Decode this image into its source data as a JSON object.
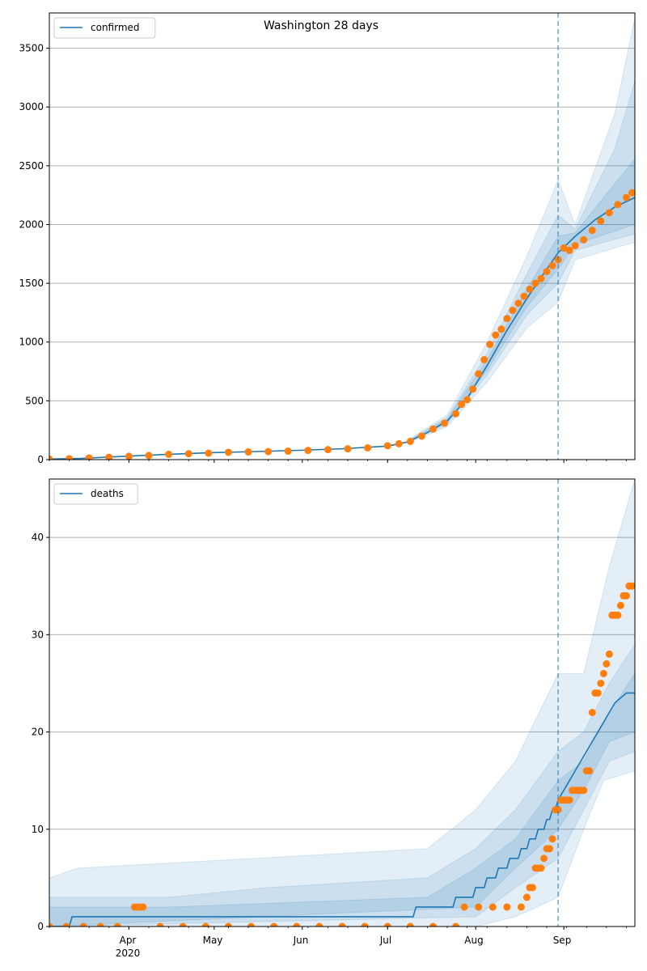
{
  "title": "Washington 28 days",
  "colors": {
    "model": "#1f77b4",
    "observed": "#ff7f0e",
    "band": "#1f77b4",
    "grid": "#b0b0b0"
  },
  "x_axis": {
    "month_labels": [
      "Apr",
      "May",
      "Jun",
      "Jul",
      "Aug",
      "Sep"
    ],
    "year_label": "2020"
  },
  "chart_data": [
    {
      "type": "line",
      "legend": "confirmed",
      "legend_position": "top-left",
      "x_type": "date",
      "xlim": [
        "2020-03-04",
        "2020-09-26"
      ],
      "forecast_start": "2020-08-30",
      "ylim": [
        0,
        3800
      ],
      "yticks": [
        0,
        500,
        1000,
        1500,
        2000,
        2500,
        3000,
        3500
      ],
      "grid": "horizontal",
      "model_points": [
        [
          "2020-03-04",
          5
        ],
        [
          "2020-03-15",
          10
        ],
        [
          "2020-04-01",
          30
        ],
        [
          "2020-04-15",
          45
        ],
        [
          "2020-05-01",
          60
        ],
        [
          "2020-05-15",
          68
        ],
        [
          "2020-06-01",
          80
        ],
        [
          "2020-06-15",
          92
        ],
        [
          "2020-07-01",
          115
        ],
        [
          "2020-07-08",
          150
        ],
        [
          "2020-07-15",
          230
        ],
        [
          "2020-07-22",
          330
        ],
        [
          "2020-07-29",
          520
        ],
        [
          "2020-08-05",
          800
        ],
        [
          "2020-08-12",
          1100
        ],
        [
          "2020-08-19",
          1370
        ],
        [
          "2020-08-26",
          1620
        ],
        [
          "2020-08-30",
          1760
        ],
        [
          "2020-09-05",
          1900
        ],
        [
          "2020-09-12",
          2040
        ],
        [
          "2020-09-19",
          2150
        ],
        [
          "2020-09-26",
          2230
        ]
      ],
      "bands": [
        {
          "level": "outer",
          "lower": [
            [
              "2020-07-08",
              140
            ],
            [
              "2020-07-22",
              280
            ],
            [
              "2020-08-05",
              660
            ],
            [
              "2020-08-19",
              1120
            ],
            [
              "2020-08-30",
              1340
            ],
            [
              "2020-09-05",
              1700
            ],
            [
              "2020-09-26",
              1850
            ]
          ],
          "upper": [
            [
              "2020-07-08",
              165
            ],
            [
              "2020-07-22",
              380
            ],
            [
              "2020-08-05",
              1000
            ],
            [
              "2020-08-19",
              1730
            ],
            [
              "2020-08-30",
              2380
            ],
            [
              "2020-09-05",
              2000
            ],
            [
              "2020-09-19",
              2950
            ],
            [
              "2020-09-26",
              3760
            ]
          ]
        },
        {
          "level": "middle",
          "lower": [
            [
              "2020-07-08",
              145
            ],
            [
              "2020-07-22",
              300
            ],
            [
              "2020-08-05",
              720
            ],
            [
              "2020-08-19",
              1230
            ],
            [
              "2020-08-30",
              1500
            ],
            [
              "2020-09-05",
              1780
            ],
            [
              "2020-09-26",
              1920
            ]
          ],
          "upper": [
            [
              "2020-07-08",
              158
            ],
            [
              "2020-07-22",
              360
            ],
            [
              "2020-08-05",
              900
            ],
            [
              "2020-08-19",
              1580
            ],
            [
              "2020-08-30",
              2080
            ],
            [
              "2020-09-05",
              1960
            ],
            [
              "2020-09-19",
              2650
            ],
            [
              "2020-09-26",
              3220
            ]
          ]
        },
        {
          "level": "inner",
          "lower": [
            [
              "2020-07-08",
              148
            ],
            [
              "2020-07-22",
              315
            ],
            [
              "2020-08-05",
              760
            ],
            [
              "2020-08-19",
              1300
            ],
            [
              "2020-08-30",
              1620
            ],
            [
              "2020-09-05",
              1830
            ],
            [
              "2020-09-26",
              2000
            ]
          ],
          "upper": [
            [
              "2020-07-08",
              154
            ],
            [
              "2020-07-22",
              345
            ],
            [
              "2020-08-05",
              850
            ],
            [
              "2020-08-19",
              1450
            ],
            [
              "2020-08-30",
              1900
            ],
            [
              "2020-09-05",
              1930
            ],
            [
              "2020-09-19",
              2350
            ],
            [
              "2020-09-26",
              2560
            ]
          ]
        }
      ],
      "observed_points": [
        [
          "2020-03-04",
          4
        ],
        [
          "2020-03-11",
          8
        ],
        [
          "2020-03-18",
          14
        ],
        [
          "2020-03-25",
          20
        ],
        [
          "2020-04-01",
          28
        ],
        [
          "2020-04-08",
          35
        ],
        [
          "2020-04-15",
          45
        ],
        [
          "2020-04-22",
          50
        ],
        [
          "2020-04-29",
          55
        ],
        [
          "2020-05-06",
          62
        ],
        [
          "2020-05-13",
          65
        ],
        [
          "2020-05-20",
          68
        ],
        [
          "2020-05-27",
          72
        ],
        [
          "2020-06-03",
          78
        ],
        [
          "2020-06-10",
          85
        ],
        [
          "2020-06-17",
          92
        ],
        [
          "2020-06-24",
          100
        ],
        [
          "2020-07-01",
          118
        ],
        [
          "2020-07-05",
          135
        ],
        [
          "2020-07-09",
          155
        ],
        [
          "2020-07-13",
          200
        ],
        [
          "2020-07-17",
          260
        ],
        [
          "2020-07-21",
          310
        ],
        [
          "2020-07-25",
          390
        ],
        [
          "2020-07-27",
          470
        ],
        [
          "2020-07-29",
          510
        ],
        [
          "2020-07-31",
          600
        ],
        [
          "2020-08-02",
          730
        ],
        [
          "2020-08-04",
          850
        ],
        [
          "2020-08-06",
          980
        ],
        [
          "2020-08-08",
          1060
        ],
        [
          "2020-08-10",
          1110
        ],
        [
          "2020-08-12",
          1200
        ],
        [
          "2020-08-14",
          1270
        ],
        [
          "2020-08-16",
          1330
        ],
        [
          "2020-08-18",
          1390
        ],
        [
          "2020-08-20",
          1450
        ],
        [
          "2020-08-22",
          1500
        ],
        [
          "2020-08-24",
          1540
        ],
        [
          "2020-08-26",
          1600
        ],
        [
          "2020-08-28",
          1650
        ],
        [
          "2020-08-30",
          1700
        ],
        [
          "2020-09-01",
          1800
        ],
        [
          "2020-09-03",
          1780
        ],
        [
          "2020-09-05",
          1820
        ],
        [
          "2020-09-08",
          1870
        ],
        [
          "2020-09-11",
          1950
        ],
        [
          "2020-09-14",
          2030
        ],
        [
          "2020-09-17",
          2100
        ],
        [
          "2020-09-20",
          2170
        ],
        [
          "2020-09-23",
          2230
        ],
        [
          "2020-09-25",
          2270
        ]
      ]
    },
    {
      "type": "line",
      "legend": "deaths",
      "legend_position": "top-left",
      "x_type": "date",
      "xlim": [
        "2020-03-04",
        "2020-09-26"
      ],
      "forecast_start": "2020-08-30",
      "ylim": [
        0,
        46
      ],
      "yticks": [
        0,
        10,
        20,
        30,
        40
      ],
      "grid": "horizontal",
      "model_points": [
        [
          "2020-03-04",
          0
        ],
        [
          "2020-03-11",
          0
        ],
        [
          "2020-03-12",
          1
        ],
        [
          "2020-07-10",
          1
        ],
        [
          "2020-07-11",
          2
        ],
        [
          "2020-07-24",
          2
        ],
        [
          "2020-07-25",
          3
        ],
        [
          "2020-07-31",
          3
        ],
        [
          "2020-08-01",
          4
        ],
        [
          "2020-08-04",
          4
        ],
        [
          "2020-08-05",
          5
        ],
        [
          "2020-08-08",
          5
        ],
        [
          "2020-08-09",
          6
        ],
        [
          "2020-08-12",
          6
        ],
        [
          "2020-08-13",
          7
        ],
        [
          "2020-08-16",
          7
        ],
        [
          "2020-08-17",
          8
        ],
        [
          "2020-08-19",
          8
        ],
        [
          "2020-08-20",
          9
        ],
        [
          "2020-08-22",
          9
        ],
        [
          "2020-08-23",
          10
        ],
        [
          "2020-08-25",
          10
        ],
        [
          "2020-08-26",
          11
        ],
        [
          "2020-08-27",
          11
        ],
        [
          "2020-08-28",
          12
        ],
        [
          "2020-08-29",
          12
        ],
        [
          "2020-08-30",
          13
        ],
        [
          "2020-09-01",
          14
        ],
        [
          "2020-09-03",
          15
        ],
        [
          "2020-09-05",
          16
        ],
        [
          "2020-09-07",
          17
        ],
        [
          "2020-09-09",
          18
        ],
        [
          "2020-09-11",
          19
        ],
        [
          "2020-09-13",
          20
        ],
        [
          "2020-09-15",
          21
        ],
        [
          "2020-09-17",
          22
        ],
        [
          "2020-09-19",
          23
        ],
        [
          "2020-09-23",
          24
        ],
        [
          "2020-09-26",
          24
        ]
      ],
      "bands": [
        {
          "level": "outer",
          "lower": [
            [
              "2020-03-04",
              0
            ],
            [
              "2020-08-01",
              0
            ],
            [
              "2020-08-15",
              1
            ],
            [
              "2020-08-30",
              3
            ],
            [
              "2020-09-08",
              10
            ],
            [
              "2020-09-15",
              15
            ],
            [
              "2020-09-26",
              16
            ]
          ],
          "upper": [
            [
              "2020-03-04",
              5
            ],
            [
              "2020-03-14",
              6
            ],
            [
              "2020-05-15",
              7
            ],
            [
              "2020-07-15",
              8
            ],
            [
              "2020-08-01",
              12
            ],
            [
              "2020-08-15",
              17
            ],
            [
              "2020-08-30",
              26
            ],
            [
              "2020-09-08",
              26
            ],
            [
              "2020-09-17",
              37
            ],
            [
              "2020-09-26",
              46
            ]
          ]
        },
        {
          "level": "middle",
          "lower": [
            [
              "2020-03-04",
              0
            ],
            [
              "2020-08-01",
              1
            ],
            [
              "2020-08-15",
              4
            ],
            [
              "2020-08-30",
              7
            ],
            [
              "2020-09-08",
              12
            ],
            [
              "2020-09-17",
              17
            ],
            [
              "2020-09-26",
              18
            ]
          ],
          "upper": [
            [
              "2020-03-04",
              3
            ],
            [
              "2020-04-15",
              3
            ],
            [
              "2020-05-20",
              4
            ],
            [
              "2020-07-15",
              5
            ],
            [
              "2020-08-01",
              8
            ],
            [
              "2020-08-15",
              12
            ],
            [
              "2020-08-30",
              18
            ],
            [
              "2020-09-08",
              20
            ],
            [
              "2020-09-17",
              25
            ],
            [
              "2020-09-26",
              29
            ]
          ]
        },
        {
          "level": "inner",
          "lower": [
            [
              "2020-03-04",
              0
            ],
            [
              "2020-08-01",
              2
            ],
            [
              "2020-08-15",
              6
            ],
            [
              "2020-08-30",
              10
            ],
            [
              "2020-09-08",
              14
            ],
            [
              "2020-09-17",
              19
            ],
            [
              "2020-09-26",
              20
            ]
          ],
          "upper": [
            [
              "2020-03-04",
              2
            ],
            [
              "2020-04-15",
              2
            ],
            [
              "2020-07-15",
              3
            ],
            [
              "2020-08-01",
              6
            ],
            [
              "2020-08-15",
              9
            ],
            [
              "2020-08-30",
              15
            ],
            [
              "2020-09-08",
              17
            ],
            [
              "2020-09-17",
              22
            ],
            [
              "2020-09-26",
              26
            ]
          ]
        }
      ],
      "observed_points": [
        [
          "2020-03-04",
          0
        ],
        [
          "2020-03-10",
          0
        ],
        [
          "2020-03-16",
          0
        ],
        [
          "2020-03-22",
          0
        ],
        [
          "2020-03-28",
          0
        ],
        [
          "2020-04-03",
          2
        ],
        [
          "2020-04-04",
          2
        ],
        [
          "2020-04-05",
          2
        ],
        [
          "2020-04-06",
          2
        ],
        [
          "2020-04-12",
          0
        ],
        [
          "2020-04-20",
          0
        ],
        [
          "2020-04-28",
          0
        ],
        [
          "2020-05-06",
          0
        ],
        [
          "2020-05-14",
          0
        ],
        [
          "2020-05-22",
          0
        ],
        [
          "2020-05-30",
          0
        ],
        [
          "2020-06-07",
          0
        ],
        [
          "2020-06-15",
          0
        ],
        [
          "2020-06-23",
          0
        ],
        [
          "2020-07-01",
          0
        ],
        [
          "2020-07-09",
          0
        ],
        [
          "2020-07-17",
          0
        ],
        [
          "2020-07-25",
          0
        ],
        [
          "2020-07-28",
          2
        ],
        [
          "2020-08-02",
          2
        ],
        [
          "2020-08-07",
          2
        ],
        [
          "2020-08-12",
          2
        ],
        [
          "2020-08-17",
          2
        ],
        [
          "2020-08-19",
          3
        ],
        [
          "2020-08-20",
          4
        ],
        [
          "2020-08-21",
          4
        ],
        [
          "2020-08-22",
          6
        ],
        [
          "2020-08-23",
          6
        ],
        [
          "2020-08-24",
          6
        ],
        [
          "2020-08-25",
          7
        ],
        [
          "2020-08-26",
          8
        ],
        [
          "2020-08-27",
          8
        ],
        [
          "2020-08-28",
          9
        ],
        [
          "2020-08-29",
          12
        ],
        [
          "2020-08-30",
          12
        ],
        [
          "2020-08-31",
          13
        ],
        [
          "2020-09-01",
          13
        ],
        [
          "2020-09-02",
          13
        ],
        [
          "2020-09-03",
          13
        ],
        [
          "2020-09-04",
          14
        ],
        [
          "2020-09-05",
          14
        ],
        [
          "2020-09-06",
          14
        ],
        [
          "2020-09-07",
          14
        ],
        [
          "2020-09-08",
          14
        ],
        [
          "2020-09-09",
          16
        ],
        [
          "2020-09-10",
          16
        ],
        [
          "2020-09-11",
          22
        ],
        [
          "2020-09-12",
          24
        ],
        [
          "2020-09-13",
          24
        ],
        [
          "2020-09-14",
          25
        ],
        [
          "2020-09-15",
          26
        ],
        [
          "2020-09-16",
          27
        ],
        [
          "2020-09-17",
          28
        ],
        [
          "2020-09-18",
          32
        ],
        [
          "2020-09-19",
          32
        ],
        [
          "2020-09-20",
          32
        ],
        [
          "2020-09-21",
          33
        ],
        [
          "2020-09-22",
          34
        ],
        [
          "2020-09-23",
          34
        ],
        [
          "2020-09-24",
          35
        ],
        [
          "2020-09-25",
          35
        ]
      ]
    }
  ]
}
